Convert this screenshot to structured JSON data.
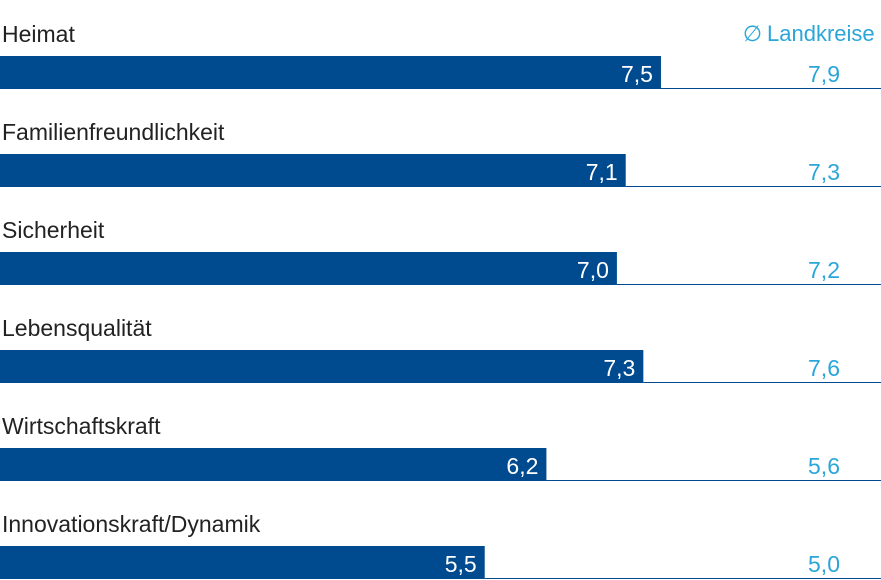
{
  "chart_data": {
    "type": "bar",
    "orientation": "horizontal",
    "categories": [
      "Heimat",
      "Familienfreundlichkeit",
      "Sicherheit",
      "Lebensqualität",
      "Wirtschaftskraft",
      "Innovationskraft/Dynamik"
    ],
    "series": [
      {
        "values": [
          7.5,
          7.1,
          7.0,
          7.3,
          6.2,
          5.5
        ],
        "value_labels": [
          "7,5",
          "7,1",
          "7,0",
          "7,3",
          "6,2",
          "5,5"
        ],
        "color": "#004a8f"
      },
      {
        "name": "Landkreise",
        "values": [
          7.9,
          7.3,
          7.2,
          7.6,
          5.6,
          5.0
        ],
        "value_labels": [
          "7,9",
          "7,3",
          "7,2",
          "7,6",
          "5,6",
          "5,0"
        ],
        "color": "#2aa6d8"
      }
    ],
    "legend_symbol": "∅",
    "legend_label": "Landkreise",
    "legend_position": "top-right",
    "xlim": [
      0,
      10
    ],
    "grid": false,
    "title": "",
    "xlabel": "",
    "ylabel": ""
  },
  "colors": {
    "bar": "#004a8f",
    "average_text": "#2aa6d8",
    "label_text": "#222222",
    "baseline": "#004a8f"
  }
}
